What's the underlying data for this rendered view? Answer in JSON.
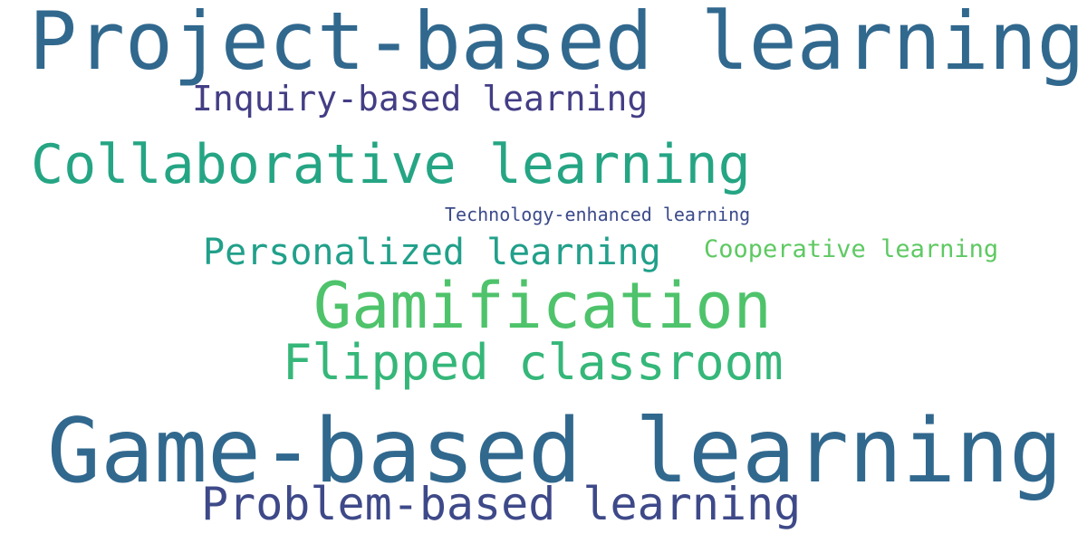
{
  "words": [
    {
      "text": "Project-based learning",
      "color": "#31688e"
    },
    {
      "text": "Inquiry-based learning",
      "color": "#433e85"
    },
    {
      "text": "Collaborative learning",
      "color": "#25a584"
    },
    {
      "text": "Technology-enhanced learning",
      "color": "#3b4a8a"
    },
    {
      "text": "Personalized learning",
      "color": "#21a08a"
    },
    {
      "text": "Cooperative learning",
      "color": "#5ec962"
    },
    {
      "text": "Gamification",
      "color": "#4ec36b"
    },
    {
      "text": "Flipped classroom",
      "color": "#35b779"
    },
    {
      "text": "Game-based learning",
      "color": "#31688e"
    },
    {
      "text": "Problem-based learning",
      "color": "#3e4989"
    }
  ]
}
